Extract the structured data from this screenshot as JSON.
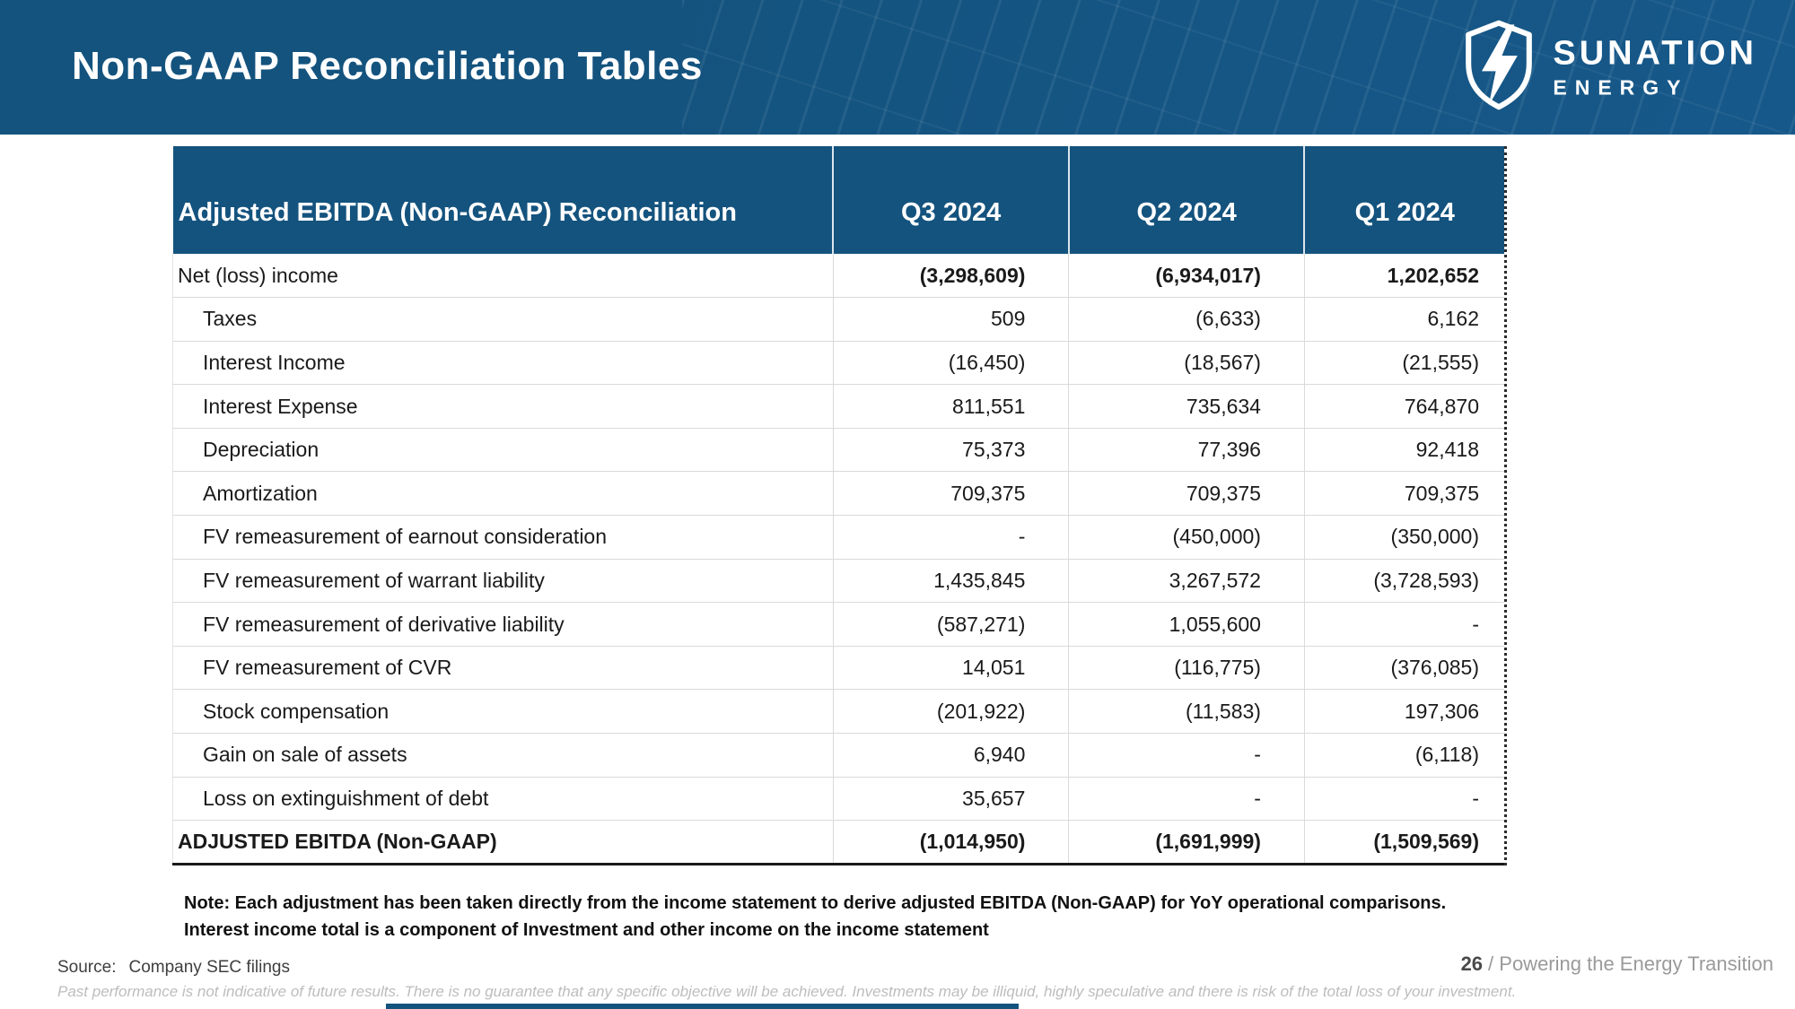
{
  "colors": {
    "brand_blue": "#14537E",
    "table_border_light": "#dadada",
    "total_rule": "#191919"
  },
  "banner": {
    "title": "Non-GAAP Reconciliation Tables",
    "logo_name": "SUNATION",
    "logo_sub": "ENERGY"
  },
  "table": {
    "header": [
      "Adjusted EBITDA (Non-GAAP) Reconciliation",
      "Q3 2024",
      "Q2 2024",
      "Q1 2024"
    ],
    "rows": [
      {
        "label": "Net (loss) income",
        "indent": false,
        "bold_values": true,
        "total": false,
        "values": [
          "(3,298,609)",
          "(6,934,017)",
          "1,202,652"
        ]
      },
      {
        "label": "Taxes",
        "indent": true,
        "bold_values": false,
        "total": false,
        "values": [
          "509",
          "(6,633)",
          "6,162"
        ]
      },
      {
        "label": "Interest Income",
        "indent": true,
        "bold_values": false,
        "total": false,
        "values": [
          "(16,450)",
          "(18,567)",
          "(21,555)"
        ]
      },
      {
        "label": "Interest Expense",
        "indent": true,
        "bold_values": false,
        "total": false,
        "values": [
          "811,551",
          "735,634",
          "764,870"
        ]
      },
      {
        "label": "Depreciation",
        "indent": true,
        "bold_values": false,
        "total": false,
        "values": [
          "75,373",
          "77,396",
          "92,418"
        ]
      },
      {
        "label": "Amortization",
        "indent": true,
        "bold_values": false,
        "total": false,
        "values": [
          "709,375",
          "709,375",
          "709,375"
        ]
      },
      {
        "label": "FV remeasurement of earnout consideration",
        "indent": true,
        "bold_values": false,
        "total": false,
        "values": [
          "-",
          "(450,000)",
          "(350,000)"
        ]
      },
      {
        "label": "FV remeasurement of warrant liability",
        "indent": true,
        "bold_values": false,
        "total": false,
        "values": [
          "1,435,845",
          "3,267,572",
          "(3,728,593)"
        ]
      },
      {
        "label": "FV remeasurement of derivative liability",
        "indent": true,
        "bold_values": false,
        "total": false,
        "values": [
          "(587,271)",
          "1,055,600",
          "-"
        ]
      },
      {
        "label": "FV remeasurement of CVR",
        "indent": true,
        "bold_values": false,
        "total": false,
        "values": [
          "14,051",
          "(116,775)",
          "(376,085)"
        ]
      },
      {
        "label": "Stock compensation",
        "indent": true,
        "bold_values": false,
        "total": false,
        "values": [
          "(201,922)",
          "(11,583)",
          "197,306"
        ]
      },
      {
        "label": "Gain on sale of assets",
        "indent": true,
        "bold_values": false,
        "total": false,
        "values": [
          "6,940",
          "-",
          "(6,118)"
        ]
      },
      {
        "label": "Loss on extinguishment of debt",
        "indent": true,
        "bold_values": false,
        "total": false,
        "values": [
          "35,657",
          "-",
          "-"
        ]
      },
      {
        "label": "ADJUSTED EBITDA (Non-GAAP)",
        "indent": false,
        "bold_values": true,
        "total": true,
        "values": [
          "(1,014,950)",
          "(1,691,999)",
          "(1,509,569)"
        ]
      }
    ]
  },
  "note": {
    "line1": "Note: Each adjustment has been taken directly from the income statement to derive adjusted EBITDA (Non-GAAP) for YoY operational comparisons.",
    "line2": "Interest income total is a component of Investment and other income on the income statement"
  },
  "footer": {
    "source_label": "Source:",
    "source_value": "Company SEC filings",
    "page_number": "26",
    "page_tagline": "/ Powering the Energy Transition",
    "disclaimer": "Past performance is not indicative of future results. There is no guarantee that any specific objective will be achieved. Investments may be illiquid, highly speculative and there is risk of the total loss of your investment."
  }
}
